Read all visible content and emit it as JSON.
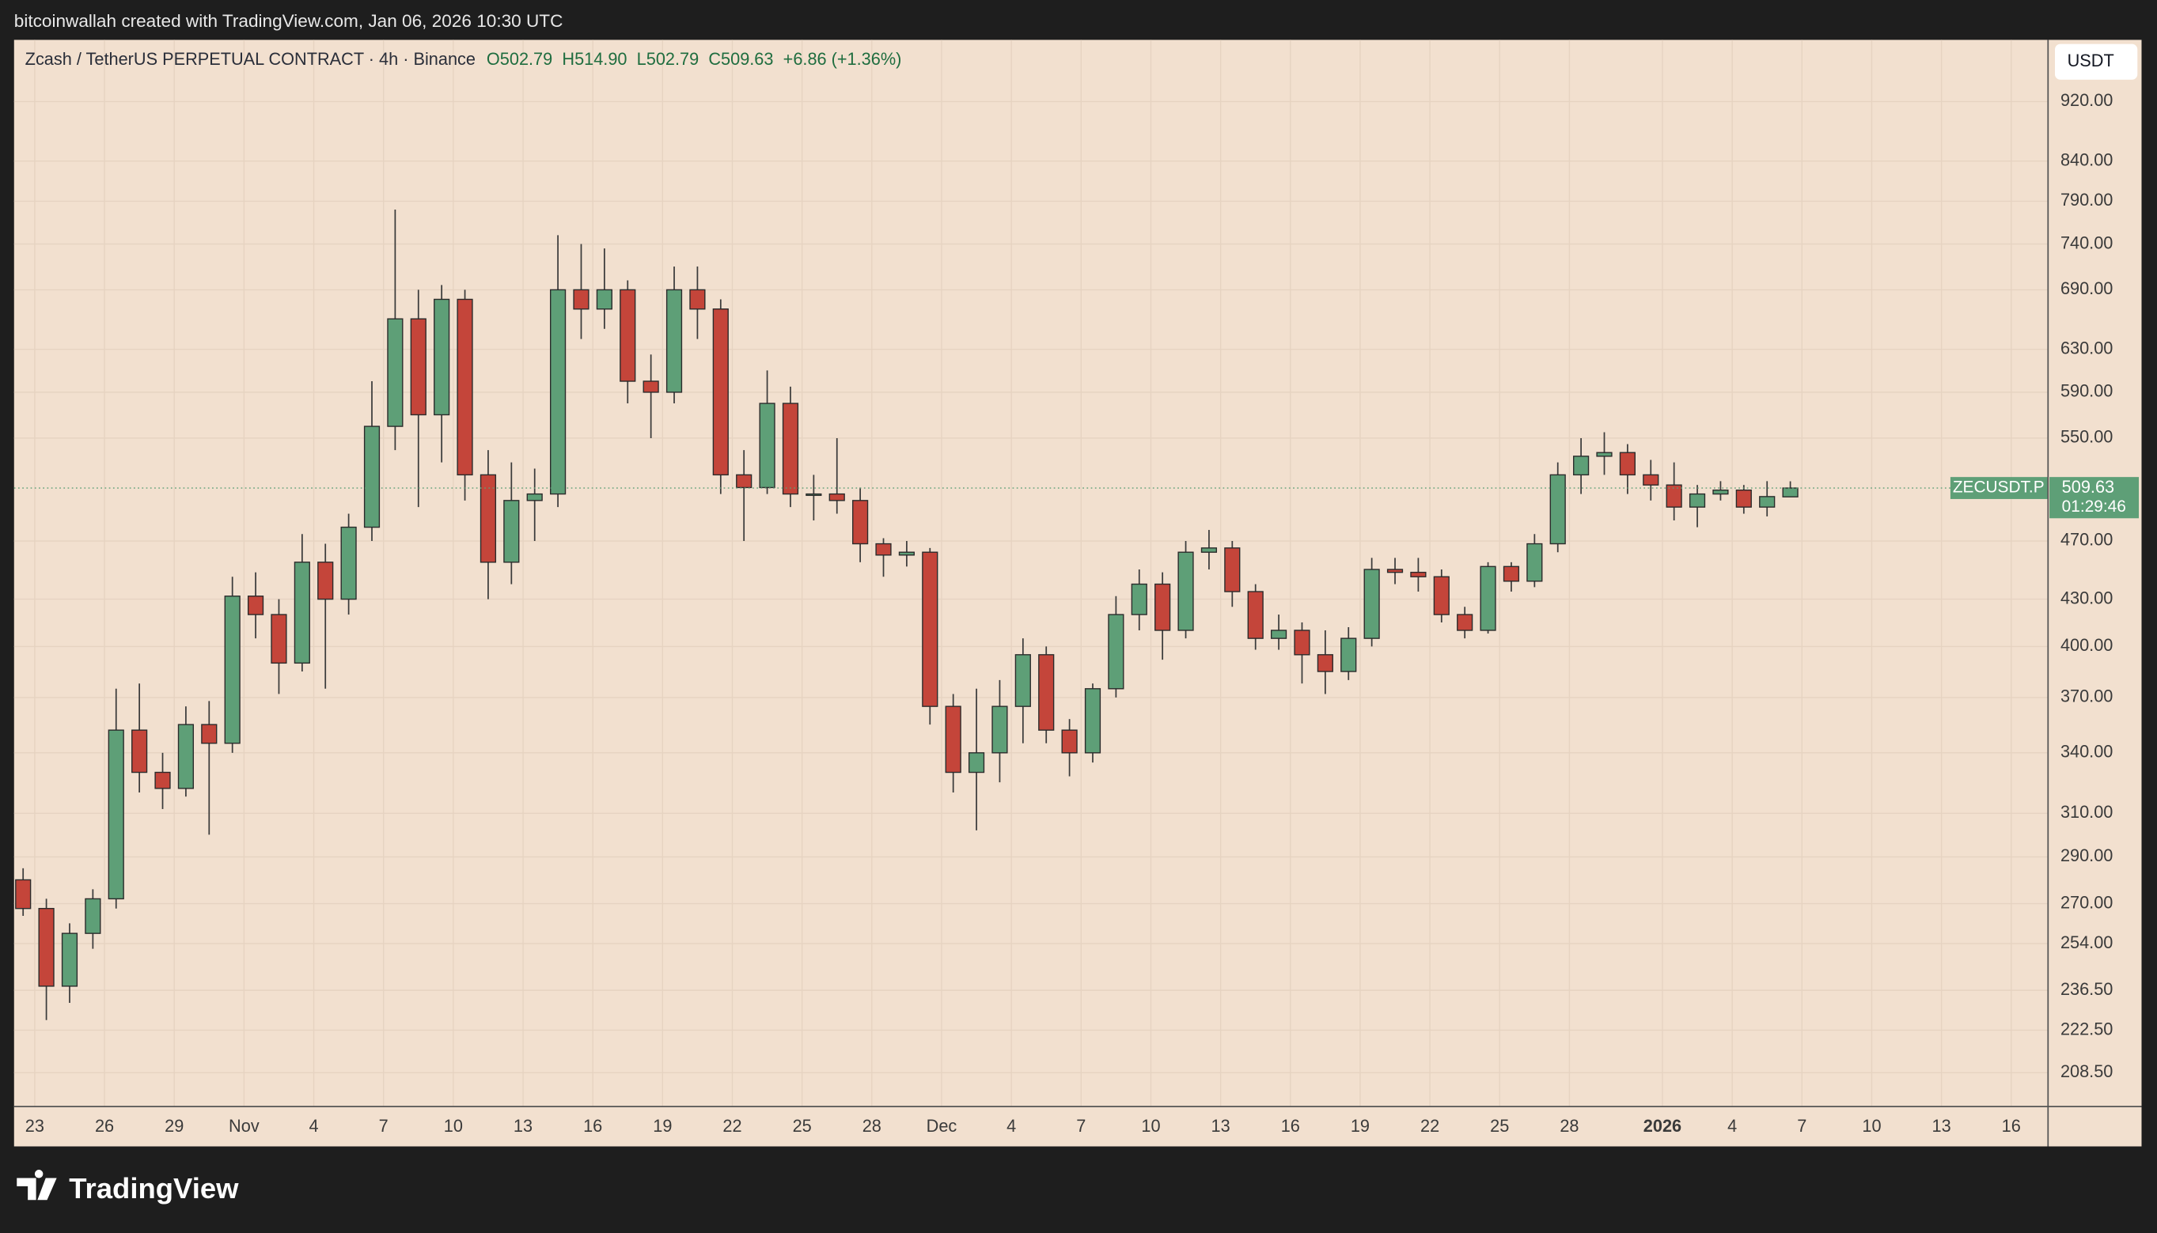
{
  "top_bar": "bitcoinwallah created with TradingView.com, Jan 06, 2026 10:30 UTC",
  "chart_data": {
    "type": "candlestick",
    "title": "Zcash / TetherUS PERPETUAL CONTRACT · 4h · Binance",
    "ohlc_header": [
      "O502.79",
      "H514.90",
      "L502.79",
      "C509.63",
      "+6.86 (+1.36%)"
    ],
    "currency": "USDT",
    "x": [
      "2025-10-22",
      "2025-10-23",
      "2025-10-24",
      "2025-10-25",
      "2025-10-26",
      "2025-10-27",
      "2025-10-28",
      "2025-10-29",
      "2025-10-30",
      "2025-10-31",
      "2025-11-01",
      "2025-11-02",
      "2025-11-03",
      "2025-11-04",
      "2025-11-05",
      "2025-11-06",
      "2025-11-07",
      "2025-11-08",
      "2025-11-09",
      "2025-11-10",
      "2025-11-11",
      "2025-11-12",
      "2025-11-13",
      "2025-11-14",
      "2025-11-15",
      "2025-11-16",
      "2025-11-17",
      "2025-11-18",
      "2025-11-19",
      "2025-11-20",
      "2025-11-21",
      "2025-11-22",
      "2025-11-23",
      "2025-11-24",
      "2025-11-25",
      "2025-11-26",
      "2025-11-27",
      "2025-11-28",
      "2025-11-29",
      "2025-11-30",
      "2025-12-01",
      "2025-12-02",
      "2025-12-03",
      "2025-12-04",
      "2025-12-05",
      "2025-12-06",
      "2025-12-07",
      "2025-12-08",
      "2025-12-09",
      "2025-12-10",
      "2025-12-11",
      "2025-12-12",
      "2025-12-13",
      "2025-12-14",
      "2025-12-15",
      "2025-12-16",
      "2025-12-17",
      "2025-12-18",
      "2025-12-19",
      "2025-12-20",
      "2025-12-21",
      "2025-12-22",
      "2025-12-23",
      "2025-12-24",
      "2025-12-25",
      "2025-12-26",
      "2025-12-27",
      "2025-12-28",
      "2025-12-29",
      "2025-12-30",
      "2025-12-31",
      "2026-01-01",
      "2026-01-02",
      "2026-01-03",
      "2026-01-04",
      "2026-01-05",
      "2026-01-06"
    ],
    "open": [
      280,
      268,
      238,
      258,
      272,
      352,
      330,
      322,
      355,
      345,
      432,
      420,
      390,
      455,
      430,
      480,
      560,
      660,
      570,
      680,
      520,
      455,
      500,
      505,
      690,
      670,
      690,
      600,
      590,
      690,
      670,
      520,
      510,
      580,
      505,
      505,
      500,
      468,
      460,
      462,
      365,
      330,
      340,
      365,
      395,
      352,
      340,
      375,
      420,
      440,
      410,
      462,
      465,
      435,
      405,
      410,
      395,
      385,
      405,
      450,
      448,
      445,
      420,
      410,
      452,
      442,
      468,
      520,
      535,
      538,
      520,
      512,
      495,
      505,
      508,
      495,
      502.79
    ],
    "high": [
      285,
      272,
      262,
      276,
      375,
      378,
      340,
      365,
      368,
      445,
      448,
      430,
      475,
      468,
      490,
      600,
      780,
      690,
      695,
      690,
      540,
      530,
      525,
      750,
      740,
      735,
      700,
      625,
      715,
      715,
      680,
      540,
      610,
      595,
      520,
      550,
      510,
      472,
      470,
      465,
      372,
      375,
      380,
      405,
      400,
      358,
      378,
      432,
      450,
      448,
      470,
      478,
      470,
      440,
      420,
      415,
      410,
      412,
      458,
      458,
      458,
      450,
      425,
      455,
      455,
      475,
      530,
      550,
      555,
      545,
      532,
      530,
      512,
      515,
      512,
      515,
      514.9
    ],
    "low": [
      265,
      226,
      232,
      252,
      268,
      320,
      312,
      318,
      300,
      340,
      405,
      372,
      385,
      375,
      420,
      470,
      540,
      495,
      530,
      500,
      430,
      440,
      470,
      495,
      640,
      650,
      580,
      550,
      580,
      640,
      505,
      470,
      505,
      495,
      485,
      490,
      455,
      445,
      452,
      355,
      320,
      302,
      325,
      345,
      345,
      328,
      335,
      370,
      410,
      392,
      405,
      450,
      425,
      398,
      398,
      378,
      372,
      380,
      400,
      440,
      435,
      415,
      405,
      408,
      435,
      438,
      462,
      505,
      520,
      505,
      500,
      485,
      480,
      500,
      490,
      488,
      502.79
    ],
    "close": [
      268,
      238,
      258,
      272,
      352,
      330,
      322,
      355,
      345,
      432,
      420,
      390,
      455,
      430,
      480,
      560,
      660,
      570,
      680,
      520,
      455,
      500,
      505,
      690,
      670,
      690,
      600,
      590,
      690,
      670,
      520,
      510,
      580,
      505,
      505,
      500,
      468,
      460,
      462,
      365,
      330,
      340,
      365,
      395,
      352,
      340,
      375,
      420,
      440,
      410,
      462,
      465,
      435,
      405,
      410,
      395,
      385,
      405,
      450,
      448,
      445,
      420,
      410,
      452,
      442,
      468,
      520,
      535,
      538,
      520,
      512,
      495,
      505,
      508,
      495,
      503,
      509.63
    ],
    "xlim": [
      "2025-10-22T02:40:00Z",
      "2026-01-17T14:00:00Z"
    ],
    "xticks": [
      {
        "value": "2025-10-23",
        "label": "23"
      },
      {
        "value": "2025-10-26",
        "label": "26"
      },
      {
        "value": "2025-10-29",
        "label": "29"
      },
      {
        "value": "2025-11-01",
        "label": "Nov"
      },
      {
        "value": "2025-11-04",
        "label": "4"
      },
      {
        "value": "2025-11-07",
        "label": "7"
      },
      {
        "value": "2025-11-10",
        "label": "10"
      },
      {
        "value": "2025-11-13",
        "label": "13"
      },
      {
        "value": "2025-11-16",
        "label": "16"
      },
      {
        "value": "2025-11-19",
        "label": "19"
      },
      {
        "value": "2025-11-22",
        "label": "22"
      },
      {
        "value": "2025-11-25",
        "label": "25"
      },
      {
        "value": "2025-11-28",
        "label": "28"
      },
      {
        "value": "2025-12-01",
        "label": "Dec"
      },
      {
        "value": "2025-12-04",
        "label": "4"
      },
      {
        "value": "2025-12-07",
        "label": "7"
      },
      {
        "value": "2025-12-10",
        "label": "10"
      },
      {
        "value": "2025-12-13",
        "label": "13"
      },
      {
        "value": "2025-12-16",
        "label": "16"
      },
      {
        "value": "2025-12-19",
        "label": "19"
      },
      {
        "value": "2025-12-22",
        "label": "22"
      },
      {
        "value": "2025-12-25",
        "label": "25"
      },
      {
        "value": "2025-12-28",
        "label": "28"
      },
      {
        "value": "2026-01-01",
        "label": "2026"
      },
      {
        "value": "2026-01-04",
        "label": "4"
      },
      {
        "value": "2026-01-07",
        "label": "7"
      },
      {
        "value": "2026-01-10",
        "label": "10"
      },
      {
        "value": "2026-01-13",
        "label": "13"
      },
      {
        "value": "2026-01-16",
        "label": "16"
      }
    ],
    "ylim": [
      198,
      1011
    ],
    "log_scale": true,
    "yticks": [
      {
        "value": 920,
        "label": "920.00"
      },
      {
        "value": 840,
        "label": "840.00"
      },
      {
        "value": 790,
        "label": "790.00"
      },
      {
        "value": 740,
        "label": "740.00"
      },
      {
        "value": 690,
        "label": "690.00"
      },
      {
        "value": 630,
        "label": "630.00"
      },
      {
        "value": 590,
        "label": "590.00"
      },
      {
        "value": 550,
        "label": "550.00"
      },
      {
        "value": 470,
        "label": "470.00"
      },
      {
        "value": 430,
        "label": "430.00"
      },
      {
        "value": 400,
        "label": "400.00"
      },
      {
        "value": 370,
        "label": "370.00"
      },
      {
        "value": 340,
        "label": "340.00"
      },
      {
        "value": 310,
        "label": "310.00"
      },
      {
        "value": 290,
        "label": "290.00"
      },
      {
        "value": 270,
        "label": "270.00"
      },
      {
        "value": 254,
        "label": "254.00"
      },
      {
        "value": 236.5,
        "label": "236.50"
      },
      {
        "value": 222.5,
        "label": "222.50"
      },
      {
        "value": 208.5,
        "label": "208.50"
      }
    ],
    "grid": true,
    "up_color": "#5e9f77",
    "down_color": "#c4453a",
    "last_price": {
      "symbol": "ZECUSDT.P",
      "value": 509.63,
      "countdown": "01:29:46"
    }
  },
  "footer": {
    "logo": "TradingView"
  }
}
